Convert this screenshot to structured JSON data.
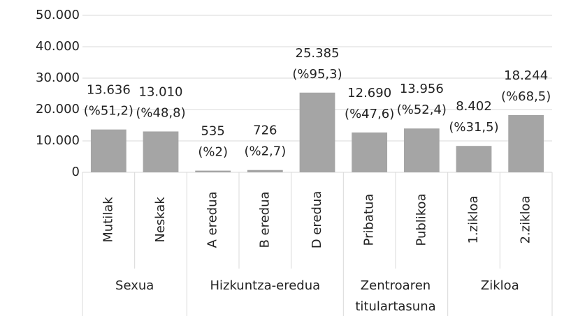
{
  "chart_data": {
    "type": "bar",
    "color": "#a5a5a5",
    "grid": true,
    "ylim": [
      0,
      50000
    ],
    "yticks": [
      0,
      {
        "value": 10000,
        "label": "10.000"
      },
      {
        "value": 20000,
        "label": "20.000"
      },
      {
        "value": 30000,
        "label": "30.000"
      },
      {
        "value": 40000,
        "label": "40.000"
      },
      {
        "value": 50000,
        "label": "50.000"
      }
    ],
    "groups": [
      {
        "label": "Sexua",
        "categories": [
          "Mutilak",
          "Neskak"
        ],
        "values": [
          13636,
          13010
        ],
        "value_labels": [
          [
            "13.636",
            "(%51,2)"
          ],
          [
            "13.010",
            "(%48,8)"
          ]
        ]
      },
      {
        "label": "Hizkuntza-eredua",
        "categories": [
          "A eredua",
          "B eredua",
          "D eredua"
        ],
        "values": [
          535,
          726,
          25385
        ],
        "value_labels": [
          [
            "535",
            "(%2)"
          ],
          [
            "726",
            "(%2,7)"
          ],
          [
            "25.385",
            "(%95,3)"
          ]
        ]
      },
      {
        "label": [
          "Zentroaren",
          "titulartasuna"
        ],
        "categories": [
          "Pribatua",
          "Publikoa"
        ],
        "values": [
          12690,
          13956
        ],
        "value_labels": [
          [
            "12.690",
            "(%47,6)"
          ],
          [
            "13.956",
            "(%52,4)"
          ]
        ]
      },
      {
        "label": "Zikloa",
        "categories": [
          "1.zikloa",
          "2.zikloa"
        ],
        "values": [
          8402,
          18244
        ],
        "value_labels": [
          [
            "8.402",
            "(%31,5)"
          ],
          [
            "18.244",
            "(%68,5)"
          ]
        ]
      }
    ]
  }
}
